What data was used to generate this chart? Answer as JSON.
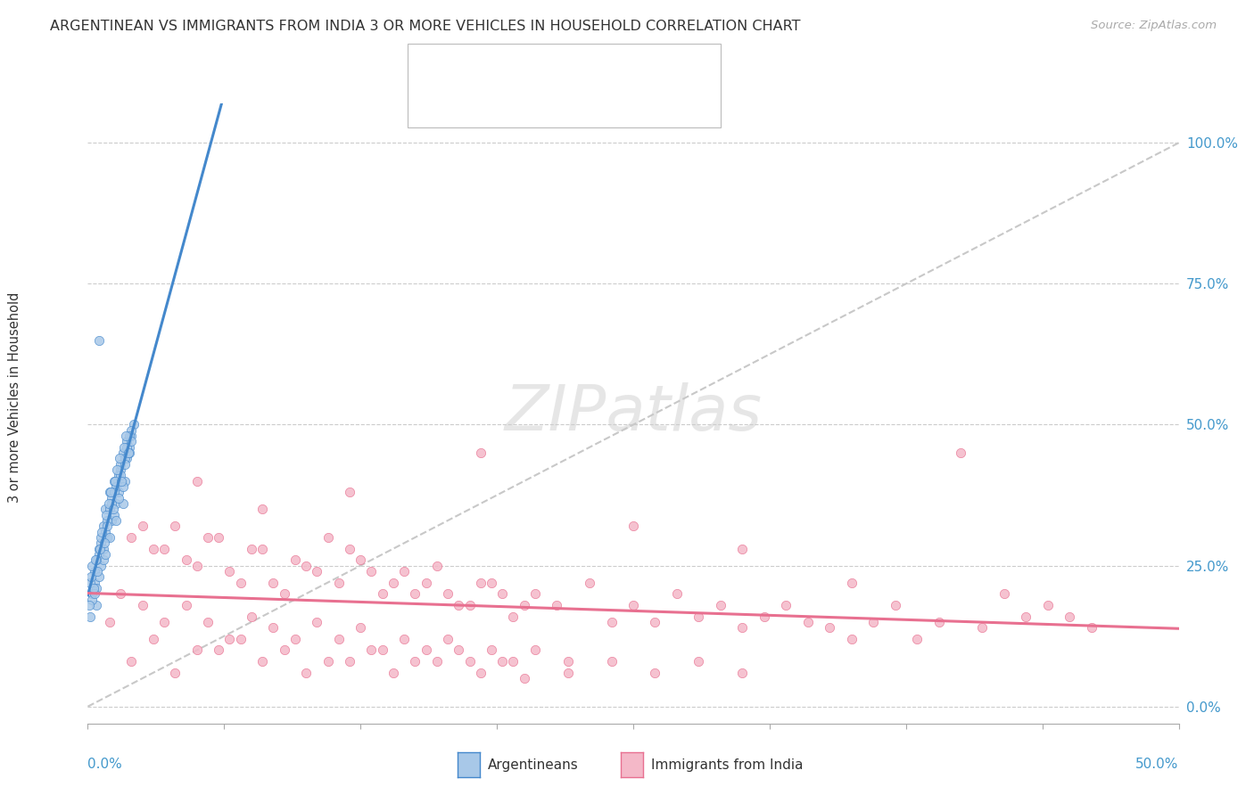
{
  "title": "ARGENTINEAN VS IMMIGRANTS FROM INDIA 3 OR MORE VEHICLES IN HOUSEHOLD CORRELATION CHART",
  "source": "Source: ZipAtlas.com",
  "ylabel": "3 or more Vehicles in Household",
  "yticks": [
    "0.0%",
    "25.0%",
    "50.0%",
    "75.0%",
    "100.0%"
  ],
  "ytick_vals": [
    0.0,
    25.0,
    50.0,
    75.0,
    100.0
  ],
  "xrange": [
    0.0,
    50.0
  ],
  "yrange": [
    -3.0,
    107.0
  ],
  "series1_color": "#a8c8e8",
  "series2_color": "#f4b8c8",
  "line1_color": "#4488cc",
  "line2_color": "#e87090",
  "argentineans": [
    [
      0.5,
      65.0
    ],
    [
      0.2,
      20.0
    ],
    [
      0.3,
      22.0
    ],
    [
      0.4,
      18.0
    ],
    [
      0.5,
      28.0
    ],
    [
      0.6,
      25.0
    ],
    [
      0.7,
      32.0
    ],
    [
      0.8,
      35.0
    ],
    [
      0.9,
      30.0
    ],
    [
      1.0,
      38.0
    ],
    [
      1.1,
      33.0
    ],
    [
      1.2,
      40.0
    ],
    [
      1.3,
      36.0
    ],
    [
      1.4,
      38.0
    ],
    [
      1.5,
      42.0
    ],
    [
      1.6,
      45.0
    ],
    [
      1.7,
      40.0
    ],
    [
      1.8,
      44.0
    ],
    [
      1.9,
      46.0
    ],
    [
      2.0,
      48.0
    ],
    [
      2.1,
      50.0
    ],
    [
      0.1,
      16.0
    ],
    [
      0.2,
      19.0
    ],
    [
      0.3,
      24.0
    ],
    [
      0.4,
      21.0
    ],
    [
      0.5,
      27.0
    ],
    [
      0.6,
      29.0
    ],
    [
      0.7,
      26.0
    ],
    [
      0.8,
      31.0
    ],
    [
      0.9,
      33.0
    ],
    [
      1.0,
      35.0
    ],
    [
      1.1,
      37.0
    ],
    [
      1.2,
      34.0
    ],
    [
      1.3,
      39.0
    ],
    [
      1.4,
      41.0
    ],
    [
      1.5,
      43.0
    ],
    [
      1.6,
      36.0
    ],
    [
      1.7,
      44.0
    ],
    [
      1.8,
      47.0
    ],
    [
      1.9,
      45.0
    ],
    [
      2.0,
      49.0
    ],
    [
      0.1,
      22.0
    ],
    [
      0.2,
      25.0
    ],
    [
      0.3,
      20.0
    ],
    [
      0.4,
      26.0
    ],
    [
      0.5,
      23.0
    ],
    [
      0.6,
      30.0
    ],
    [
      0.7,
      28.0
    ],
    [
      0.8,
      27.0
    ],
    [
      0.9,
      32.0
    ],
    [
      1.0,
      30.0
    ],
    [
      1.1,
      36.0
    ],
    [
      1.2,
      38.0
    ],
    [
      1.3,
      33.0
    ],
    [
      1.4,
      37.0
    ],
    [
      1.5,
      41.0
    ],
    [
      1.6,
      39.0
    ],
    [
      1.7,
      43.0
    ],
    [
      1.8,
      46.0
    ],
    [
      1.9,
      48.0
    ],
    [
      2.0,
      47.0
    ],
    [
      0.05,
      18.0
    ],
    [
      0.15,
      23.0
    ],
    [
      0.25,
      21.0
    ],
    [
      0.35,
      26.0
    ],
    [
      0.45,
      24.0
    ],
    [
      0.55,
      28.0
    ],
    [
      0.65,
      31.0
    ],
    [
      0.75,
      29.0
    ],
    [
      0.85,
      34.0
    ],
    [
      0.95,
      36.0
    ],
    [
      1.05,
      38.0
    ],
    [
      1.15,
      35.0
    ],
    [
      1.25,
      40.0
    ],
    [
      1.35,
      42.0
    ],
    [
      1.45,
      44.0
    ],
    [
      1.55,
      40.0
    ],
    [
      1.65,
      46.0
    ],
    [
      1.75,
      48.0
    ],
    [
      1.85,
      45.0
    ]
  ],
  "india": [
    [
      1.0,
      35.0
    ],
    [
      2.0,
      30.0
    ],
    [
      3.0,
      28.0
    ],
    [
      4.0,
      32.0
    ],
    [
      5.0,
      25.0
    ],
    [
      6.0,
      30.0
    ],
    [
      7.0,
      22.0
    ],
    [
      8.0,
      28.0
    ],
    [
      9.0,
      20.0
    ],
    [
      10.0,
      25.0
    ],
    [
      11.0,
      30.0
    ],
    [
      12.0,
      28.0
    ],
    [
      13.0,
      24.0
    ],
    [
      14.0,
      22.0
    ],
    [
      15.0,
      20.0
    ],
    [
      16.0,
      25.0
    ],
    [
      17.0,
      18.0
    ],
    [
      18.0,
      22.0
    ],
    [
      19.0,
      20.0
    ],
    [
      20.0,
      18.0
    ],
    [
      2.5,
      32.0
    ],
    [
      3.5,
      28.0
    ],
    [
      4.5,
      26.0
    ],
    [
      5.5,
      30.0
    ],
    [
      6.5,
      24.0
    ],
    [
      7.5,
      28.0
    ],
    [
      8.5,
      22.0
    ],
    [
      9.5,
      26.0
    ],
    [
      10.5,
      24.0
    ],
    [
      11.5,
      22.0
    ],
    [
      12.5,
      26.0
    ],
    [
      13.5,
      20.0
    ],
    [
      14.5,
      24.0
    ],
    [
      15.5,
      22.0
    ],
    [
      16.5,
      20.0
    ],
    [
      17.5,
      18.0
    ],
    [
      18.5,
      22.0
    ],
    [
      19.5,
      16.0
    ],
    [
      20.5,
      20.0
    ],
    [
      21.5,
      18.0
    ],
    [
      1.5,
      20.0
    ],
    [
      2.5,
      18.0
    ],
    [
      3.5,
      15.0
    ],
    [
      4.5,
      18.0
    ],
    [
      5.5,
      15.0
    ],
    [
      6.5,
      12.0
    ],
    [
      7.5,
      16.0
    ],
    [
      8.5,
      14.0
    ],
    [
      9.5,
      12.0
    ],
    [
      10.5,
      15.0
    ],
    [
      11.5,
      12.0
    ],
    [
      12.5,
      14.0
    ],
    [
      13.5,
      10.0
    ],
    [
      14.5,
      12.0
    ],
    [
      15.5,
      10.0
    ],
    [
      16.5,
      12.0
    ],
    [
      17.5,
      8.0
    ],
    [
      18.5,
      10.0
    ],
    [
      19.5,
      8.0
    ],
    [
      20.5,
      10.0
    ],
    [
      22.0,
      8.0
    ],
    [
      23.0,
      22.0
    ],
    [
      24.0,
      15.0
    ],
    [
      25.0,
      18.0
    ],
    [
      26.0,
      15.0
    ],
    [
      27.0,
      20.0
    ],
    [
      28.0,
      16.0
    ],
    [
      29.0,
      18.0
    ],
    [
      30.0,
      14.0
    ],
    [
      31.0,
      16.0
    ],
    [
      32.0,
      18.0
    ],
    [
      33.0,
      15.0
    ],
    [
      34.0,
      14.0
    ],
    [
      35.0,
      12.0
    ],
    [
      36.0,
      15.0
    ],
    [
      37.0,
      18.0
    ],
    [
      38.0,
      12.0
    ],
    [
      39.0,
      15.0
    ],
    [
      40.0,
      45.0
    ],
    [
      41.0,
      14.0
    ],
    [
      42.0,
      20.0
    ],
    [
      43.0,
      16.0
    ],
    [
      44.0,
      18.0
    ],
    [
      45.0,
      16.0
    ],
    [
      46.0,
      14.0
    ],
    [
      2.0,
      8.0
    ],
    [
      4.0,
      6.0
    ],
    [
      6.0,
      10.0
    ],
    [
      8.0,
      8.0
    ],
    [
      10.0,
      6.0
    ],
    [
      12.0,
      8.0
    ],
    [
      14.0,
      6.0
    ],
    [
      16.0,
      8.0
    ],
    [
      18.0,
      6.0
    ],
    [
      20.0,
      5.0
    ],
    [
      22.0,
      6.0
    ],
    [
      24.0,
      8.0
    ],
    [
      26.0,
      6.0
    ],
    [
      28.0,
      8.0
    ],
    [
      30.0,
      6.0
    ],
    [
      1.0,
      15.0
    ],
    [
      3.0,
      12.0
    ],
    [
      5.0,
      10.0
    ],
    [
      7.0,
      12.0
    ],
    [
      9.0,
      10.0
    ],
    [
      11.0,
      8.0
    ],
    [
      13.0,
      10.0
    ],
    [
      15.0,
      8.0
    ],
    [
      17.0,
      10.0
    ],
    [
      19.0,
      8.0
    ],
    [
      5.0,
      40.0
    ],
    [
      8.0,
      35.0
    ],
    [
      12.0,
      38.0
    ],
    [
      18.0,
      45.0
    ],
    [
      25.0,
      32.0
    ],
    [
      30.0,
      28.0
    ],
    [
      35.0,
      22.0
    ]
  ]
}
